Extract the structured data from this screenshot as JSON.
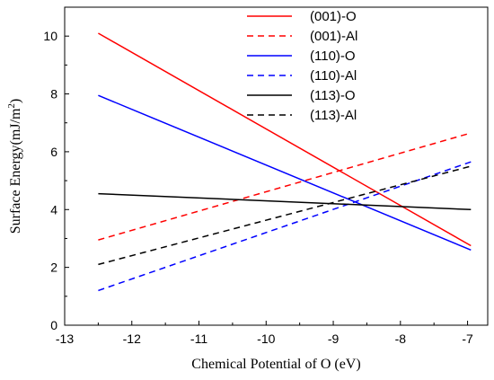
{
  "chart_data": {
    "type": "line",
    "title": "",
    "xlabel": "Chemical Potential of O (eV)",
    "ylabel": "Surface Energy(mJ/m2)",
    "xlim": [
      -13,
      -6.7
    ],
    "ylim": [
      0,
      11
    ],
    "xticks": [
      -13,
      -12,
      -11,
      -10,
      -9,
      -8,
      -7
    ],
    "yticks": [
      0,
      2,
      4,
      6,
      8,
      10
    ],
    "grid": false,
    "legend_position": "top-right",
    "series": [
      {
        "name": "(001)-O",
        "color": "#ff0000",
        "dash": "solid",
        "x": [
          -12.5,
          -6.95
        ],
        "y": [
          10.1,
          2.75
        ]
      },
      {
        "name": "(001)-Al",
        "color": "#ff0000",
        "dash": "dashed",
        "x": [
          -12.5,
          -6.95
        ],
        "y": [
          2.95,
          6.65
        ]
      },
      {
        "name": "(110)-O",
        "color": "#0000ff",
        "dash": "solid",
        "x": [
          -12.5,
          -6.95
        ],
        "y": [
          7.95,
          2.6
        ]
      },
      {
        "name": "(110)-Al",
        "color": "#0000ff",
        "dash": "dashed",
        "x": [
          -12.5,
          -6.95
        ],
        "y": [
          1.2,
          5.65
        ]
      },
      {
        "name": "(113)-O",
        "color": "#000000",
        "dash": "solid",
        "x": [
          -12.5,
          -6.95
        ],
        "y": [
          4.55,
          4.0
        ]
      },
      {
        "name": "(113)-Al",
        "color": "#000000",
        "dash": "dashed",
        "x": [
          -12.5,
          -6.95
        ],
        "y": [
          2.1,
          5.5
        ]
      }
    ]
  }
}
